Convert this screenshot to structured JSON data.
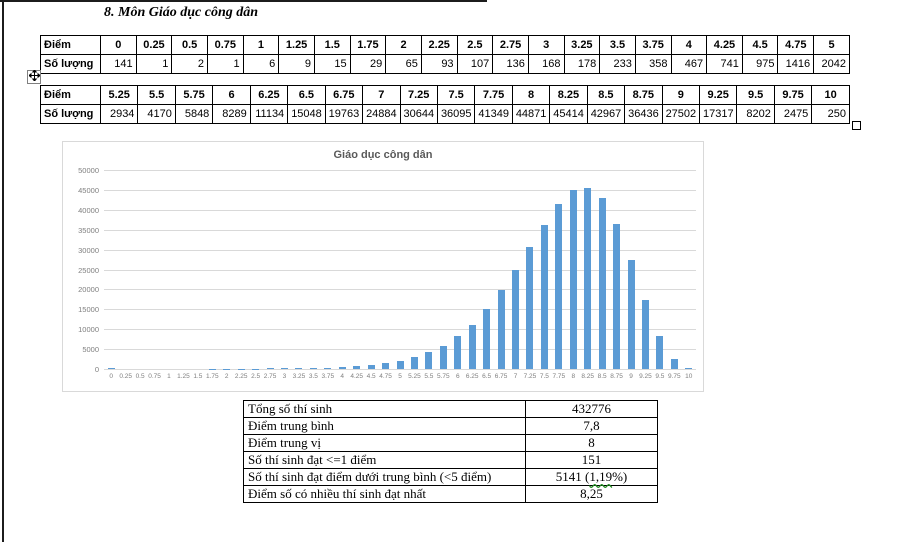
{
  "page": {
    "title": "8. Môn Giáo dục công dân"
  },
  "icons": {
    "table_move_handle": "four-way-arrow"
  },
  "score_tables": [
    {
      "header_label": "Điểm",
      "count_label": "Số lượng",
      "scores": [
        "0",
        "0.25",
        "0.5",
        "0.75",
        "1",
        "1.25",
        "1.5",
        "1.75",
        "2",
        "2.25",
        "2.5",
        "2.75",
        "3",
        "3.25",
        "3.5",
        "3.75",
        "4",
        "4.25",
        "4.5",
        "4.75",
        "5"
      ],
      "counts": [
        "141",
        "1",
        "2",
        "1",
        "6",
        "9",
        "15",
        "29",
        "65",
        "93",
        "107",
        "136",
        "168",
        "178",
        "233",
        "358",
        "467",
        "741",
        "975",
        "1416",
        "2042"
      ]
    },
    {
      "header_label": "Điểm",
      "count_label": "Số lượng",
      "scores": [
        "5.25",
        "5.5",
        "5.75",
        "6",
        "6.25",
        "6.5",
        "6.75",
        "7",
        "7.25",
        "7.5",
        "7.75",
        "8",
        "8.25",
        "8.5",
        "8.75",
        "9",
        "9.25",
        "9.5",
        "9.75",
        "10"
      ],
      "counts": [
        "2934",
        "4170",
        "5848",
        "8289",
        "11134",
        "15048",
        "19763",
        "24884",
        "30644",
        "36095",
        "41349",
        "44871",
        "45414",
        "42967",
        "36436",
        "27502",
        "17317",
        "8202",
        "2475",
        "250"
      ]
    }
  ],
  "chart_data": {
    "type": "bar",
    "title": "Giáo dục công dân",
    "categories": [
      "0",
      "0.25",
      "0.5",
      "0.75",
      "1",
      "1.25",
      "1.5",
      "1.75",
      "2",
      "2.25",
      "2.5",
      "2.75",
      "3",
      "3.25",
      "3.5",
      "3.75",
      "4",
      "4.25",
      "4.5",
      "4.75",
      "5",
      "5.25",
      "5.5",
      "5.75",
      "6",
      "6.25",
      "6.5",
      "6.75",
      "7",
      "7.25",
      "7.5",
      "7.75",
      "8",
      "8.25",
      "8.5",
      "8.75",
      "9",
      "9.25",
      "9.5",
      "9.75",
      "10"
    ],
    "values": [
      141,
      1,
      2,
      1,
      6,
      9,
      15,
      29,
      65,
      93,
      107,
      136,
      168,
      178,
      233,
      358,
      467,
      741,
      975,
      1416,
      2042,
      2934,
      4170,
      5848,
      8289,
      11134,
      15048,
      19763,
      24884,
      30644,
      36095,
      41349,
      44871,
      45414,
      42967,
      36436,
      27502,
      17317,
      8202,
      2475,
      250
    ],
    "xlabel": "",
    "ylabel": "",
    "ylim": [
      0,
      50000
    ],
    "ytick_step": 5000,
    "grid": true,
    "legend": false,
    "bar_color": "#5b9bd5",
    "gridline_color": "#d9d9d9",
    "axis_text_color": "#7f7f7f"
  },
  "summary_table": {
    "rows": [
      {
        "label": "Tổng số thí sinh",
        "value": "432776"
      },
      {
        "label": "Điểm trung bình",
        "value": "7,8"
      },
      {
        "label": "Điểm trung vị",
        "value": "8"
      },
      {
        "label": "Số thí sinh đạt <=1 điểm",
        "value": "151"
      },
      {
        "label": "Số thí sinh đạt điểm dưới trung bình (<5 điểm)",
        "value": "5141 (1,19%)",
        "value_parts": [
          {
            "text": "5141 (",
            "wavy": false
          },
          {
            "text": "1,19",
            "wavy": true
          },
          {
            "text": "%)",
            "wavy": false
          }
        ]
      },
      {
        "label": "Điểm số có nhiều thí sinh đạt nhất",
        "value": "8,25"
      }
    ]
  }
}
